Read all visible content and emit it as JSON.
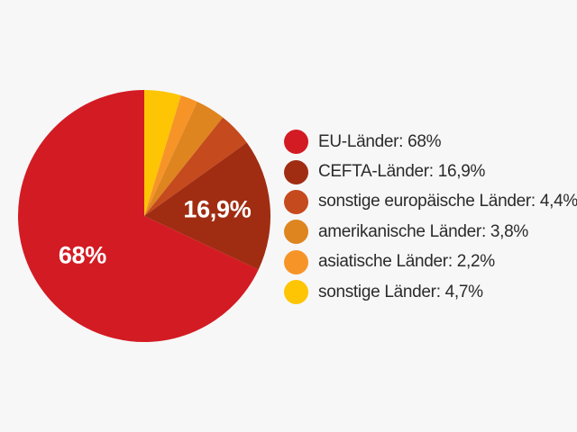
{
  "background_color": "#f7f7f7",
  "chart_data": {
    "type": "pie",
    "title": "",
    "legend_position": "right",
    "start_angle_deg": 0,
    "direction": "clockwise",
    "total": 100,
    "slice_label_color": "#ffffff",
    "legend_text_color": "#2b2b2b",
    "items": [
      {
        "label": "EU-Länder",
        "value": 68,
        "display": "68%",
        "color": "#d31b23",
        "slice_label": "68%"
      },
      {
        "label": "CEFTA-Länder",
        "value": 16.9,
        "display": "16,9%",
        "color": "#a02d12",
        "slice_label": "16,9%"
      },
      {
        "label": "sonstige europäische Länder",
        "value": 4.4,
        "display": "4,4%",
        "color": "#c54a1d",
        "slice_label": ""
      },
      {
        "label": "amerikanische Länder",
        "value": 3.8,
        "display": "3,8%",
        "color": "#de851f",
        "slice_label": ""
      },
      {
        "label": "asiatische Länder",
        "value": 2.2,
        "display": "2,2%",
        "color": "#f79428",
        "slice_label": ""
      },
      {
        "label": "sonstige Länder",
        "value": 4.7,
        "display": "4,7%",
        "color": "#fdc504",
        "slice_label": ""
      }
    ]
  }
}
